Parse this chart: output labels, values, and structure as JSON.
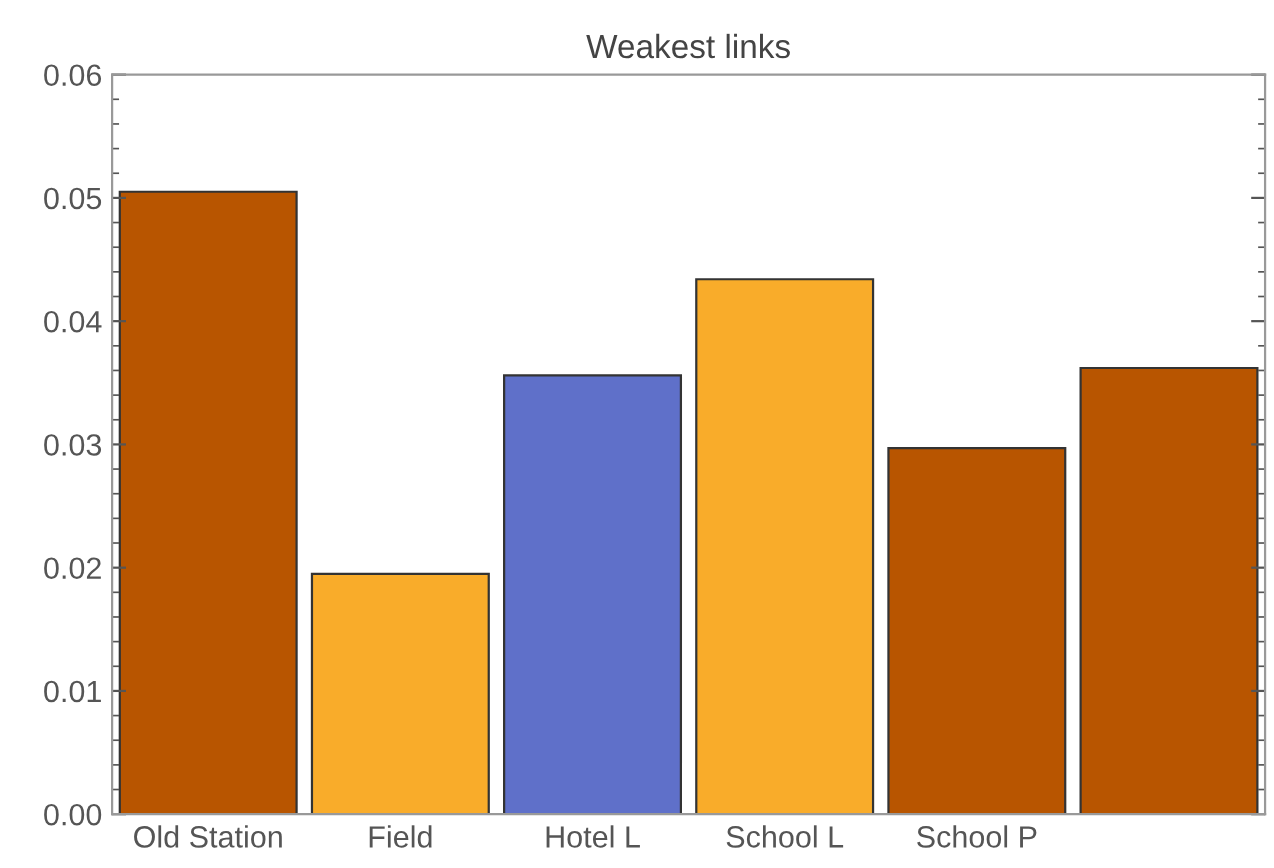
{
  "chart_data": {
    "type": "bar",
    "title": "Weakest links",
    "categories": [
      "Old Station",
      "Field",
      "Hotel L",
      "School L",
      "School P",
      null
    ],
    "values": [
      0.0505,
      0.0195,
      0.0356,
      0.0434,
      0.0297,
      0.0362
    ],
    "colors": [
      "#b85500",
      "#f9ac2a",
      "#5f70c9",
      "#f9ac2a",
      "#b85500",
      "#b85500"
    ],
    "ylim": [
      0,
      0.06
    ],
    "yticks": [
      {
        "value": 0,
        "label": "0.00"
      },
      {
        "value": 0.01,
        "label": "0.01"
      },
      {
        "value": 0.02,
        "label": "0.02"
      },
      {
        "value": 0.03,
        "label": "0.03"
      },
      {
        "value": 0.04,
        "label": "0.04"
      },
      {
        "value": 0.05,
        "label": "0.05"
      },
      {
        "value": 0.06,
        "label": "0.06"
      }
    ],
    "grid": false
  }
}
